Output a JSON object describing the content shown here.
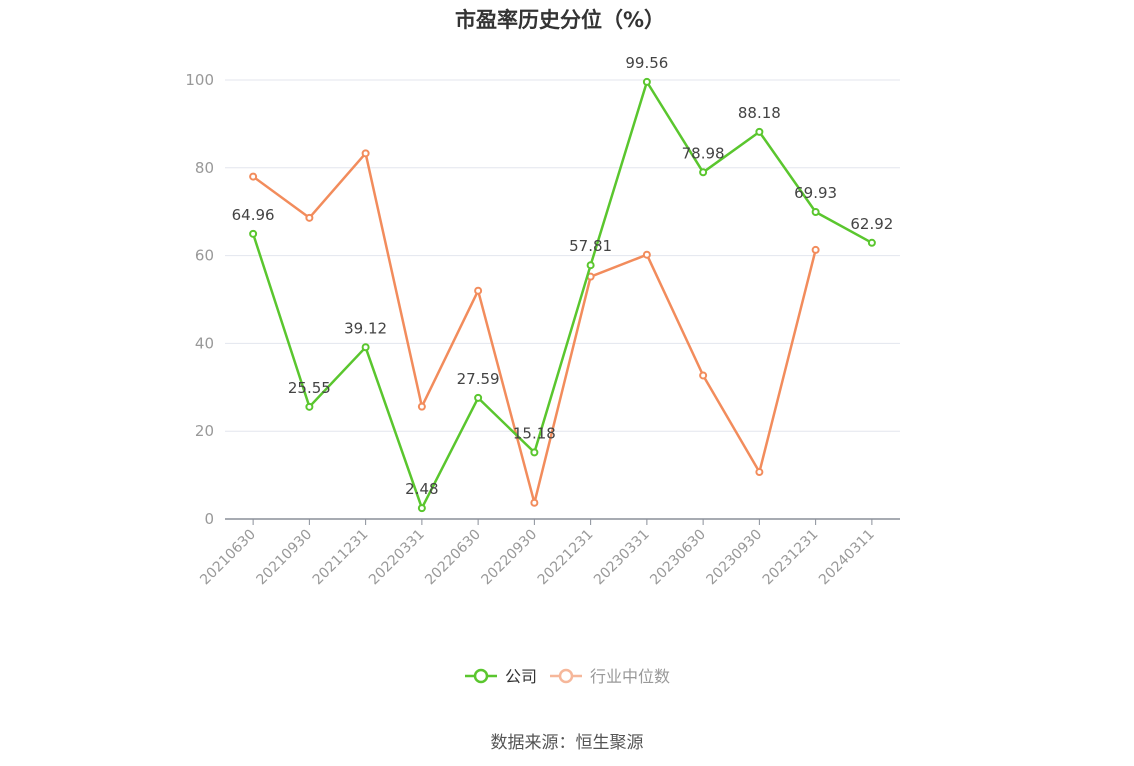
{
  "chart_data": {
    "type": "line",
    "title": "市盈率历史分位（%）",
    "categories": [
      "20210630",
      "20210930",
      "20211231",
      "20220331",
      "20220630",
      "20220930",
      "20221231",
      "20230331",
      "20230630",
      "20230930",
      "20231231",
      "20240311"
    ],
    "ylim": [
      0,
      100
    ],
    "yticks": [
      0,
      20,
      40,
      60,
      80,
      100
    ],
    "grid": true,
    "legend_position": "bottom-center",
    "series": [
      {
        "name": "公司",
        "color": "#5ac62e",
        "values": [
          64.96,
          25.55,
          39.12,
          2.48,
          27.59,
          15.18,
          57.81,
          99.56,
          78.98,
          88.18,
          69.93,
          62.92
        ],
        "data_labels": [
          "64.96",
          "25.55",
          "39.12",
          "2.48",
          "27.59",
          "15.18",
          "57.81",
          "99.56",
          "78.98",
          "88.18",
          "69.93",
          "62.92"
        ]
      },
      {
        "name": "行业中位数",
        "color": "#f28c5c",
        "values": [
          78.0,
          68.6,
          83.3,
          25.6,
          52.0,
          3.7,
          55.2,
          60.2,
          32.7,
          10.7,
          61.3,
          null
        ]
      }
    ]
  },
  "source": "数据来源：恒生聚源"
}
